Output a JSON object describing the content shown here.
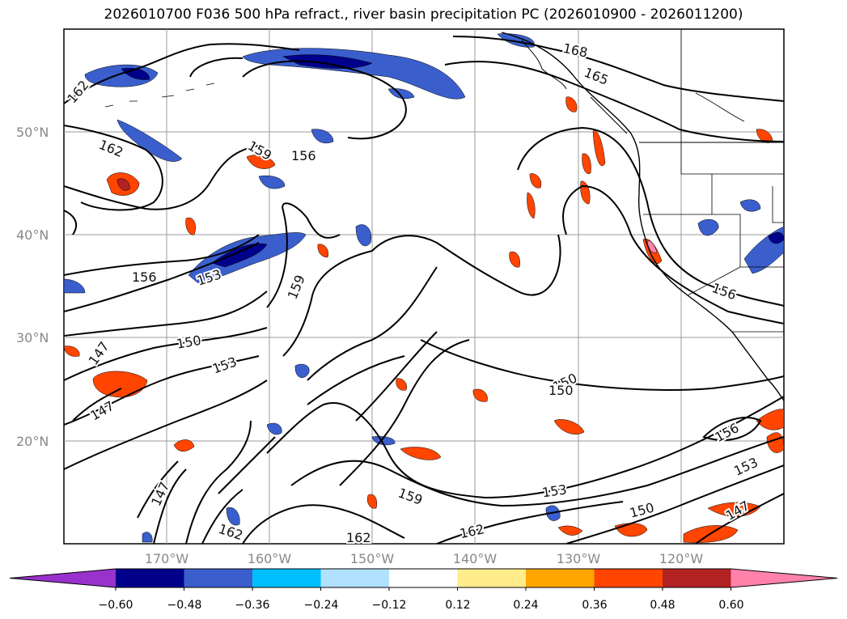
{
  "title": "2026010700 F036 500 hPa refract., river basin precipitation PC (2026010900 - 2026011200)",
  "map": {
    "lat_labels": [
      "50°N",
      "40°N",
      "30°N",
      "20°N"
    ],
    "lon_labels": [
      "170°W",
      "160°W",
      "150°W",
      "140°W",
      "130°W",
      "120°W"
    ],
    "lat_range": [
      10,
      60
    ],
    "lon_range": [
      -180,
      -110
    ],
    "grid": true
  },
  "contour_labels": [
    "162",
    "162",
    "159",
    "156",
    "156",
    "153",
    "159",
    "150",
    "153",
    "147",
    "147",
    "168",
    "165",
    "156",
    "150",
    "150",
    "156",
    "153",
    "147",
    "150",
    "153",
    "159",
    "162",
    "162",
    "162",
    "147"
  ],
  "colorbar": {
    "ticks": [
      "−0.60",
      "−0.48",
      "−0.36",
      "−0.24",
      "−0.12",
      "0.12",
      "0.24",
      "0.36",
      "0.48",
      "0.60"
    ],
    "colors": [
      "#9932cc",
      "#00008b",
      "#3a5fcd",
      "#00bfff",
      "#b0e2ff",
      "#ffffff",
      "#ffec8b",
      "#ffa500",
      "#ff4500",
      "#b22222",
      "#ff82ab"
    ]
  }
}
